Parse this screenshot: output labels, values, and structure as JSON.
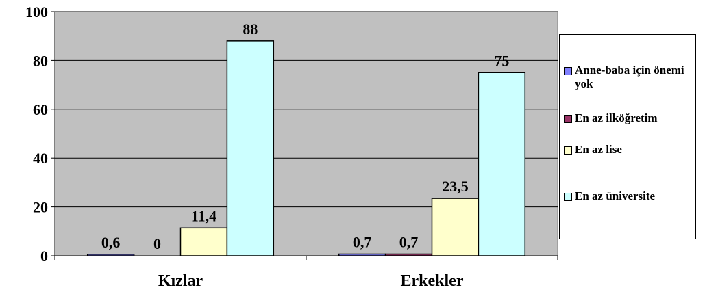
{
  "chart_data": {
    "type": "bar",
    "categories": [
      "Kızlar",
      "Erkekler"
    ],
    "series": [
      {
        "name": "Anne-baba için önemi yok",
        "color": "#8080ff",
        "values": [
          0.6,
          0.7
        ],
        "labels": [
          "0,6",
          "0,7"
        ]
      },
      {
        "name": "En az ilköğretim",
        "color": "#993366",
        "values": [
          0,
          0.7
        ],
        "labels": [
          "0",
          "0,7"
        ]
      },
      {
        "name": "En az lise",
        "color": "#ffffcc",
        "values": [
          11.4,
          23.5
        ],
        "labels": [
          "11,4",
          "23,5"
        ]
      },
      {
        "name": "En az üniversite",
        "color": "#ccffff",
        "values": [
          88,
          75
        ],
        "labels": [
          "88",
          "75"
        ]
      }
    ],
    "ylim": [
      0,
      100
    ],
    "yticks": [
      0,
      20,
      40,
      60,
      80,
      100
    ],
    "grid": true,
    "plot_background": "#c0c0c0",
    "legend_position": "right"
  }
}
